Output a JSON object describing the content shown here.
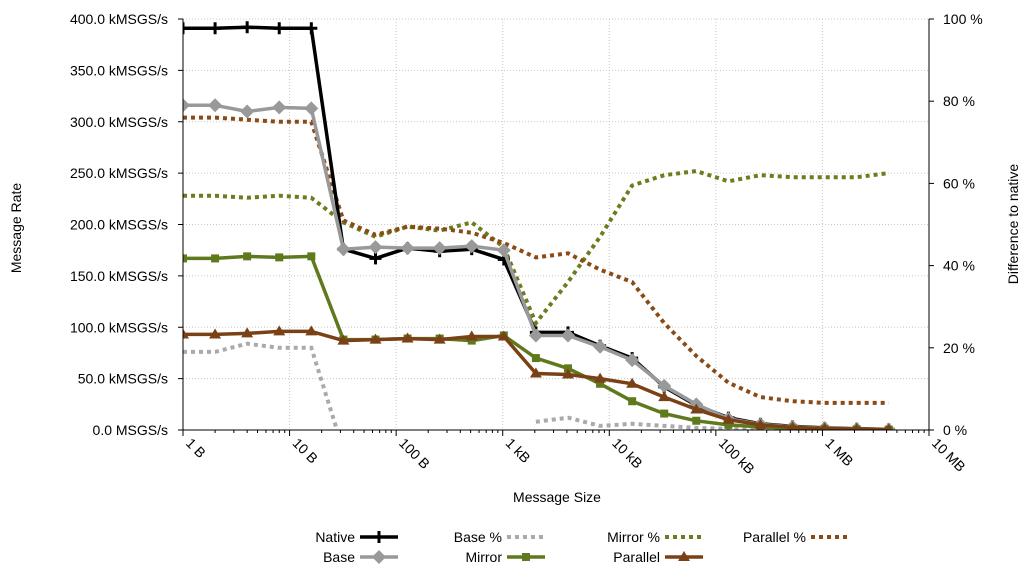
{
  "chart_data": {
    "type": "line",
    "xlabel": "Message Size",
    "ylabel": "Message Rate",
    "y2label": "Difference to native",
    "x_scale": "log",
    "xlim": [
      1,
      10000000
    ],
    "ylim": [
      0,
      400
    ],
    "y2lim": [
      0,
      100
    ],
    "x_ticks": [
      1,
      10,
      100,
      1000,
      10000,
      100000,
      1000000,
      10000000
    ],
    "x_tick_labels": [
      "1 B",
      "10 B",
      "100 B",
      "1 kB",
      "10 kB",
      "100 kB",
      "1 MB",
      "10 MB"
    ],
    "y_ticks": [
      0,
      50,
      100,
      150,
      200,
      250,
      300,
      350,
      400
    ],
    "y_tick_labels": [
      "0.0  MSGS/s",
      "50.0 kMSGS/s",
      "100.0 kMSGS/s",
      "150.0 kMSGS/s",
      "200.0 kMSGS/s",
      "250.0 kMSGS/s",
      "300.0 kMSGS/s",
      "350.0 kMSGS/s",
      "400.0 kMSGS/s"
    ],
    "y2_ticks": [
      0,
      20,
      40,
      60,
      80,
      100
    ],
    "y2_tick_labels": [
      "0 %",
      "20 %",
      "40 %",
      "60 %",
      "80 %",
      "100 %"
    ],
    "grid": true,
    "legend_position": "bottom",
    "x": [
      1,
      2,
      4,
      8,
      16,
      32,
      64,
      128,
      256,
      512,
      1024,
      2048,
      4096,
      8192,
      16384,
      32768,
      65536,
      131072,
      262144,
      524288,
      1048576,
      2097152,
      4194304
    ],
    "series": [
      {
        "name": "Native",
        "axis": "left",
        "style": "line",
        "marker": "plus",
        "color": "#000000",
        "values": [
          391,
          391,
          392,
          391,
          391,
          176,
          167,
          177,
          174,
          176,
          166,
          95,
          95,
          82,
          70,
          42,
          24,
          12,
          6,
          3.5,
          2,
          1.2,
          0.6
        ]
      },
      {
        "name": "Base",
        "axis": "left",
        "style": "line",
        "marker": "diamond",
        "color": "#999999",
        "values": [
          316,
          316,
          310,
          314,
          313,
          176,
          178,
          177,
          177,
          179,
          175,
          92,
          92,
          81,
          68,
          43,
          25,
          11,
          5.5,
          3,
          1.8,
          1,
          0.5
        ]
      },
      {
        "name": "Mirror",
        "axis": "left",
        "style": "line",
        "marker": "square",
        "color": "#5f7a1d",
        "values": [
          167,
          167,
          169,
          168,
          169,
          88,
          88,
          89,
          89,
          87,
          92,
          70,
          60,
          45,
          28,
          16,
          9,
          5,
          3,
          1.5,
          0.8,
          0.4,
          0.2
        ]
      },
      {
        "name": "Parallel",
        "axis": "left",
        "style": "line",
        "marker": "triangle",
        "color": "#7b4116",
        "values": [
          93,
          93,
          94,
          96,
          96,
          87,
          88,
          89,
          88,
          91,
          91,
          55,
          54,
          50,
          45,
          32,
          20,
          10,
          5,
          2.5,
          1.5,
          1,
          0.5
        ]
      },
      {
        "name": "Base %",
        "axis": "right",
        "style": "dotted",
        "color": "#aaaaaa",
        "values": [
          19,
          19,
          21,
          20,
          20,
          -5,
          null,
          null,
          null,
          null,
          null,
          2,
          3,
          1,
          1.5,
          1,
          0.5,
          0.3,
          0.2,
          0.1,
          0.1,
          0.1,
          0.1
        ]
      },
      {
        "name": "Mirror %",
        "axis": "right",
        "style": "dotted",
        "color": "#6b7d1d",
        "values": [
          57,
          57,
          56.5,
          57,
          56.5,
          50.5,
          47,
          49.5,
          48.5,
          50.5,
          44.5,
          26,
          36,
          47,
          59.5,
          62,
          63,
          60.5,
          62,
          61.5,
          61.5,
          61.5,
          62.5
        ]
      },
      {
        "name": "Parallel %",
        "axis": "right",
        "style": "dotted",
        "color": "#8b4b16",
        "values": [
          76,
          76,
          75.5,
          75,
          75,
          51,
          47.5,
          49.5,
          49,
          48,
          45.5,
          42,
          43,
          39,
          36,
          26,
          18,
          11.5,
          8,
          7,
          6.6,
          6.6,
          6.6
        ]
      }
    ],
    "legend": [
      {
        "name": "Native",
        "series": 0,
        "col": 0,
        "row": 0
      },
      {
        "name": "Base",
        "series": 1,
        "col": 0,
        "row": 1
      },
      {
        "name": "Base %",
        "series": 4,
        "col": 1,
        "row": 0
      },
      {
        "name": "Mirror",
        "series": 2,
        "col": 1,
        "row": 1
      },
      {
        "name": "Mirror %",
        "series": 5,
        "col": 2,
        "row": 0
      },
      {
        "name": "Parallel",
        "series": 3,
        "col": 2,
        "row": 1
      },
      {
        "name": "Parallel %",
        "series": 6,
        "col": 3,
        "row": 0
      }
    ]
  }
}
